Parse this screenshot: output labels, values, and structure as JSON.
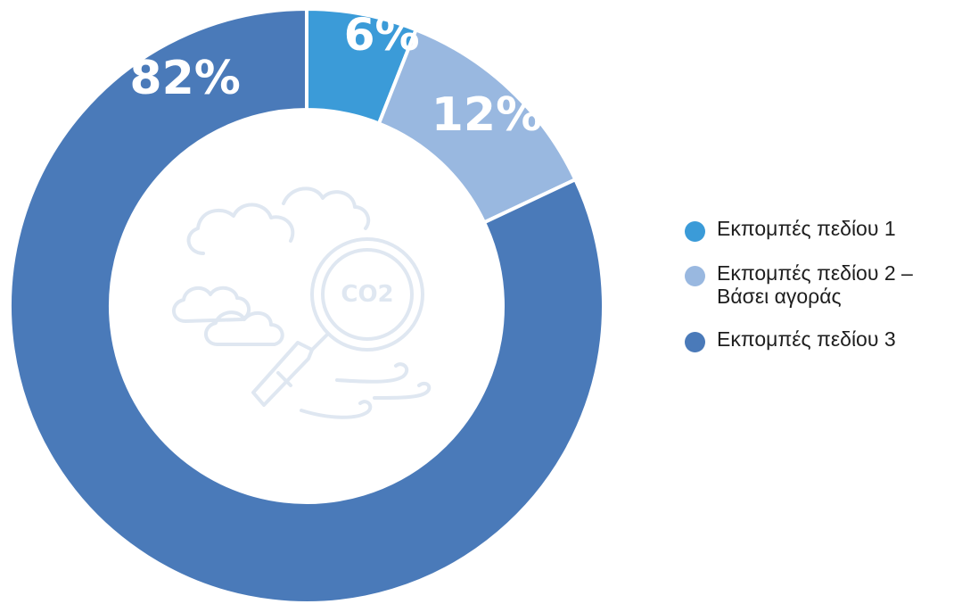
{
  "chart_data": {
    "type": "pie",
    "variant": "donut",
    "title": "",
    "categories": [
      "Εκπομπές πεδίου 1",
      "Εκπομπές πεδίου 2 –\nΒάσει αγοράς",
      "Εκπομπές πεδίου 3"
    ],
    "values": [
      6,
      12,
      82
    ],
    "labels": [
      "6%",
      "12%",
      "82%"
    ],
    "colors": [
      "#3b9bd8",
      "#99b8e0",
      "#4a7ab9"
    ],
    "legend_position": "right",
    "center_icon": "co2-cloud-magnifier-icon"
  },
  "legend": {
    "items": [
      {
        "label": "Εκπομπές πεδίου 1",
        "color": "#3b9bd8"
      },
      {
        "label": "Εκπομπές πεδίου 2 –\nΒάσει αγοράς",
        "color": "#99b8e0"
      },
      {
        "label": "Εκπομπές πεδίου 3",
        "color": "#4a7ab9"
      }
    ]
  },
  "center_icon": {
    "text": "CO2"
  }
}
